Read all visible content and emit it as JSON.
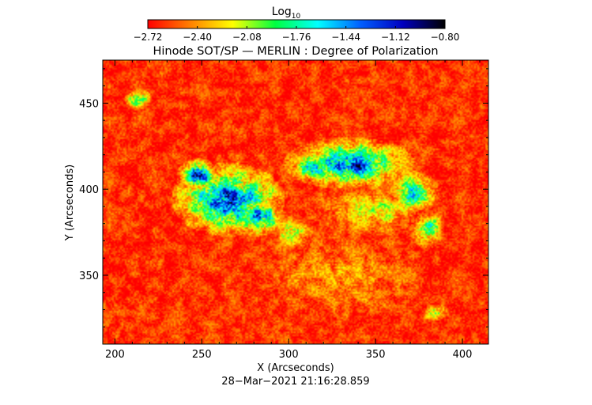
{
  "chart_data": {
    "type": "heatmap",
    "title": "Hinode SOT/SP — MERLIN : Degree of Polarization",
    "colorbar": {
      "label": "Log",
      "label_subscript": "10",
      "ticks": [
        "−2.72",
        "−2.40",
        "−2.08",
        "−1.76",
        "−1.44",
        "−1.12",
        "−0.80"
      ],
      "range": [
        -2.72,
        -0.8
      ],
      "placement": "top",
      "colormap": [
        "#ff0000",
        "#ff8000",
        "#ffff00",
        "#00ff40",
        "#00ffff",
        "#0060ff",
        "#0000c0",
        "#000000"
      ]
    },
    "xlabel": "X (Arcseconds)",
    "ylabel": "Y (Arcseconds)",
    "xlim": [
      193,
      415
    ],
    "ylim": [
      310,
      475
    ],
    "xticks": [
      "200",
      "250",
      "300",
      "350",
      "400"
    ],
    "yticks": [
      "350",
      "400",
      "450"
    ],
    "xtick_values": [
      200,
      250,
      300,
      350,
      400
    ],
    "ytick_values": [
      350,
      400,
      450
    ],
    "timestamp": "28−Mar−2021 21:16:28.859",
    "grid": false,
    "background_level": -2.62,
    "regions": [
      {
        "x": 265,
        "y": 394,
        "rx": 26,
        "ry": 17,
        "level": -1.3
      },
      {
        "x": 248,
        "y": 408,
        "rx": 10,
        "ry": 8,
        "level": -1.25
      },
      {
        "x": 282,
        "y": 384,
        "rx": 12,
        "ry": 9,
        "level": -1.35
      },
      {
        "x": 335,
        "y": 415,
        "rx": 30,
        "ry": 12,
        "level": -1.4
      },
      {
        "x": 372,
        "y": 398,
        "rx": 12,
        "ry": 10,
        "level": -1.65
      },
      {
        "x": 380,
        "y": 377,
        "rx": 8,
        "ry": 9,
        "level": -1.8
      },
      {
        "x": 314,
        "y": 412,
        "rx": 10,
        "ry": 6,
        "level": -1.3
      },
      {
        "x": 213,
        "y": 453,
        "rx": 6,
        "ry": 5,
        "level": -1.75
      },
      {
        "x": 302,
        "y": 375,
        "rx": 10,
        "ry": 8,
        "level": -2.05
      },
      {
        "x": 350,
        "y": 388,
        "rx": 30,
        "ry": 12,
        "level": -2.2
      },
      {
        "x": 330,
        "y": 350,
        "rx": 40,
        "ry": 20,
        "level": -2.4
      },
      {
        "x": 385,
        "y": 328,
        "rx": 6,
        "ry": 4,
        "level": -1.85
      }
    ]
  }
}
